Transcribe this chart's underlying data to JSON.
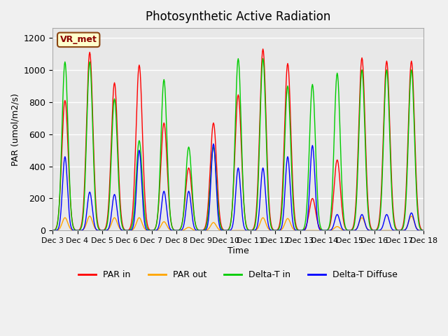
{
  "title": "Photosynthetic Active Radiation",
  "ylabel": "PAR (umol/m2/s)",
  "xlabel": "Time",
  "ylim": [
    0,
    1260
  ],
  "yticks": [
    0,
    200,
    400,
    600,
    800,
    1000,
    1200
  ],
  "background_color": "#e8e8e8",
  "label_box": "VR_met",
  "legend_labels": [
    "PAR in",
    "PAR out",
    "Delta-T in",
    "Delta-T Diffuse"
  ],
  "legend_colors": [
    "#ff0000",
    "#ffa500",
    "#00cc00",
    "#0000ff"
  ],
  "xtick_labels": [
    "Dec 3",
    "Dec 4",
    "Dec 5",
    "Dec 6",
    "Dec 7",
    "Dec 8",
    "Dec 9",
    "Dec 10",
    "Dec 11",
    "Dec 12",
    "Dec 13",
    "Dec 14",
    "Dec 15",
    "Dec 16",
    "Dec 17",
    "Dec 18"
  ],
  "day_peaks_par_in": [
    810,
    1110,
    920,
    1030,
    670,
    390,
    670,
    845,
    1130,
    1040,
    200,
    440,
    1075,
    1055,
    1055
  ],
  "day_peaks_par_out": [
    80,
    90,
    80,
    80,
    55,
    20,
    50,
    0,
    80,
    75,
    0,
    25,
    80,
    0,
    90
  ],
  "day_peaks_delta_in": [
    1050,
    1050,
    820,
    560,
    940,
    520,
    520,
    1070,
    1070,
    900,
    910,
    980,
    1000,
    1000,
    1000
  ],
  "day_peaks_delta_dif": [
    460,
    240,
    225,
    500,
    245,
    245,
    540,
    390,
    390,
    460,
    530,
    100,
    100,
    100,
    110
  ]
}
